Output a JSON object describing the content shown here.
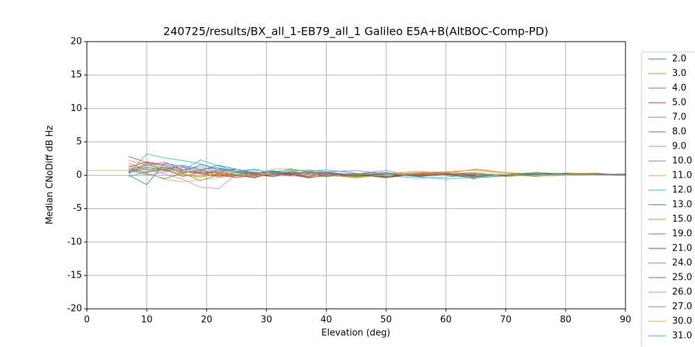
{
  "chart_data": {
    "type": "line",
    "title": "240725/results/BX_all_1-EB79_all_1 Galileo E5A+B(AltBOC-Comp-PD)",
    "xlabel": "Elevation (deg)",
    "ylabel": "Median CNoDiff dB Hz",
    "xlim": [
      0,
      90
    ],
    "xticks": [
      0,
      10,
      20,
      30,
      40,
      50,
      60,
      70,
      80,
      90
    ],
    "ylim": [
      -20,
      20
    ],
    "yticks": [
      -20,
      -15,
      -10,
      -5,
      0,
      5,
      10,
      15,
      20
    ],
    "grid": true,
    "legend": "outside-right",
    "x": [
      0,
      7,
      10,
      13,
      16,
      19,
      22,
      25,
      28,
      31,
      34,
      37,
      40,
      45,
      50,
      55,
      60,
      65,
      70,
      75,
      80,
      85,
      90
    ],
    "series": [
      {
        "name": "2.0",
        "color": "#1f77b4",
        "values": [
          null,
          0.5,
          1.2,
          0.8,
          1.5,
          0.9,
          1.1,
          0.6,
          0.3,
          0.5,
          0.2,
          0.4,
          0.1,
          0.3,
          -0.2,
          0.1,
          0.2,
          -0.1,
          0.1,
          0.2,
          0.3,
          0.1,
          0.0
        ]
      },
      {
        "name": "3.0",
        "color": "#ff7f0e",
        "values": [
          null,
          1.5,
          0.8,
          1.2,
          0.4,
          0.6,
          0.2,
          -0.1,
          0.3,
          0.5,
          0.8,
          0.6,
          0.4,
          0.1,
          0.2,
          0.6,
          0.3,
          0.9,
          0.4,
          0.2,
          0.1,
          0.2,
          null
        ]
      },
      {
        "name": "4.0",
        "color": "#2ca02c",
        "values": [
          null,
          0.8,
          0.2,
          -0.5,
          0.3,
          -0.8,
          0.1,
          0.4,
          0.0,
          0.2,
          -0.1,
          0.3,
          0.2,
          -0.2,
          0.1,
          0.0,
          0.3,
          null,
          null,
          null,
          null,
          null,
          null
        ]
      },
      {
        "name": "5.0",
        "color": "#d62728",
        "values": [
          null,
          2.8,
          1.9,
          1.4,
          0.6,
          0.2,
          -0.2,
          0.1,
          -0.3,
          0.2,
          0.0,
          -0.3,
          -0.1,
          0.1,
          -0.2,
          0.3,
          0.4,
          -0.6,
          null,
          null,
          null,
          null,
          null
        ]
      },
      {
        "name": "7.0",
        "color": "#9467bd",
        "values": [
          null,
          0.9,
          1.4,
          2.0,
          0.8,
          1.3,
          0.5,
          0.9,
          0.2,
          0.6,
          0.1,
          0.4,
          0.0,
          0.2,
          0.7,
          -0.1,
          0.1,
          0.3,
          null,
          null,
          null,
          null,
          null
        ]
      },
      {
        "name": "8.0",
        "color": "#8c564b",
        "values": [
          null,
          null,
          null,
          null,
          null,
          0.2,
          0.6,
          0.1,
          0.4,
          -0.2,
          0.3,
          0.5,
          0.2,
          -0.1,
          0.3,
          0.0,
          0.2,
          -0.3,
          0.1,
          0.4,
          0.2,
          0.3,
          0.0
        ]
      },
      {
        "name": "9.0",
        "color": "#e377c2",
        "values": [
          null,
          1.8,
          0.9,
          0.2,
          -0.6,
          -1.8,
          -2.0,
          0.1,
          -0.2,
          0.3,
          0.1,
          0.2,
          -0.1,
          0.0,
          0.2,
          null,
          null,
          null,
          null,
          null,
          null,
          null,
          null
        ]
      },
      {
        "name": "10.0",
        "color": "#7f7f7f",
        "values": [
          null,
          0.3,
          1.0,
          0.6,
          1.2,
          0.4,
          0.8,
          0.3,
          0.5,
          0.1,
          0.4,
          -0.2,
          0.3,
          0.1,
          -0.4,
          0.2,
          0.0,
          -0.2,
          0.1,
          -0.1,
          0.3,
          0.2,
          0.1
        ]
      },
      {
        "name": "11.0",
        "color": "#bcbd22",
        "values": [
          0.7,
          0.7,
          0.3,
          -0.6,
          -1.0,
          -0.7,
          -0.4,
          0.0,
          0.2,
          0.9,
          1.0,
          0.4,
          0.2,
          -0.3,
          0.0,
          0.3,
          0.1,
          0.5,
          -0.2,
          0.1,
          0.2,
          0.0,
          null
        ]
      },
      {
        "name": "12.0",
        "color": "#17becf",
        "values": [
          null,
          0.2,
          3.2,
          2.6,
          2.2,
          1.7,
          1.0,
          0.6,
          0.8,
          0.4,
          0.9,
          0.6,
          0.8,
          0.3,
          -0.1,
          -0.4,
          -0.3,
          0.2,
          -0.1,
          0.3,
          0.1,
          null,
          null
        ]
      },
      {
        "name": "13.0",
        "color": "#1f77b4",
        "values": [
          null,
          0.0,
          -1.4,
          1.8,
          1.3,
          0.7,
          1.5,
          0.9,
          0.2,
          0.6,
          0.3,
          0.5,
          0.1,
          0.2,
          0.4,
          -0.2,
          0.1,
          0.0,
          null,
          null,
          null,
          null,
          null
        ]
      },
      {
        "name": "15.0",
        "color": "#ff7f0e",
        "values": [
          null,
          2.2,
          1.6,
          0.7,
          0.1,
          -0.3,
          0.2,
          -0.4,
          0.1,
          0.3,
          -0.1,
          0.6,
          0.3,
          0.2,
          0.1,
          0.4,
          0.5,
          0.8,
          0.3,
          0.1,
          0.2,
          0.1,
          null
        ]
      },
      {
        "name": "19.0",
        "color": "#2ca02c",
        "values": [
          null,
          0.4,
          1.6,
          0.9,
          0.3,
          0.8,
          0.4,
          -0.1,
          0.2,
          0.0,
          0.5,
          0.2,
          -0.2,
          0.1,
          -0.3,
          0.2,
          0.0,
          -0.4,
          -0.1,
          0.2,
          0.0,
          0.1,
          null
        ]
      },
      {
        "name": "21.0",
        "color": "#d62728",
        "values": [
          null,
          1.2,
          2.0,
          1.6,
          0.9,
          0.3,
          0.0,
          -0.3,
          0.1,
          -0.2,
          0.2,
          -0.4,
          0.0,
          -0.1,
          0.2,
          -0.2,
          0.1,
          0.0,
          null,
          null,
          null,
          null,
          null
        ]
      },
      {
        "name": "24.0",
        "color": "#9467bd",
        "values": [
          null,
          0.6,
          1.8,
          1.1,
          0.5,
          1.6,
          0.8,
          0.9,
          0.4,
          0.2,
          0.6,
          0.3,
          0.5,
          0.7,
          0.2,
          0.1,
          0.3,
          -0.2,
          0.0,
          null,
          null,
          null,
          null
        ]
      },
      {
        "name": "25.0",
        "color": "#8c564b",
        "values": [
          null,
          1.0,
          0.4,
          0.9,
          -0.2,
          0.5,
          0.3,
          0.0,
          -0.4,
          0.4,
          0.1,
          -0.2,
          0.3,
          0.0,
          -0.3,
          0.1,
          0.4,
          0.2,
          -0.1,
          0.1,
          0.3,
          0.2,
          0.0
        ]
      },
      {
        "name": "26.0",
        "color": "#e377c2",
        "values": [
          null,
          0.8,
          0.0,
          0.5,
          0.9,
          0.2,
          0.4,
          -0.3,
          0.2,
          0.1,
          -0.1,
          0.4,
          0.2,
          -0.4,
          0.1,
          0.3,
          0.0,
          null,
          null,
          null,
          null,
          null,
          null
        ]
      },
      {
        "name": "27.0",
        "color": "#7f7f7f",
        "values": [
          null,
          null,
          null,
          null,
          null,
          null,
          0.9,
          0.5,
          0.2,
          0.7,
          0.3,
          0.1,
          0.4,
          0.0,
          0.3,
          -0.1,
          0.2,
          0.1,
          0.0,
          0.3,
          0.2,
          0.1,
          0.2
        ]
      },
      {
        "name": "30.0",
        "color": "#bcbd22",
        "values": [
          null,
          1.3,
          0.6,
          1.0,
          0.2,
          -0.2,
          0.5,
          0.1,
          -0.1,
          0.3,
          0.6,
          0.2,
          0.0,
          -0.4,
          0.1,
          0.2,
          0.4,
          0.3,
          0.1,
          -0.2,
          0.0,
          0.2,
          null
        ]
      },
      {
        "name": "31.0",
        "color": "#17becf",
        "values": [
          null,
          -0.2,
          0.5,
          1.2,
          0.7,
          2.3,
          1.4,
          0.6,
          0.9,
          0.3,
          0.6,
          0.8,
          0.5,
          0.0,
          0.3,
          -0.2,
          -0.6,
          -0.3,
          0.1,
          0.2,
          0.0,
          null,
          null
        ]
      }
    ]
  }
}
